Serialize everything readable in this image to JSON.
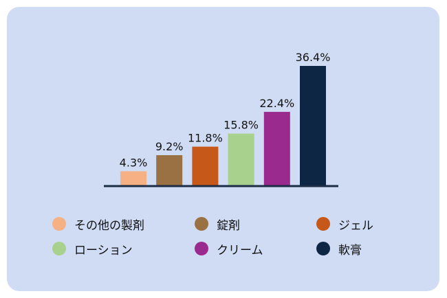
{
  "chart_data": {
    "type": "bar",
    "categories": [
      "その他の製剤",
      "錠剤",
      "ジェル",
      "ローション",
      "クリーム",
      "軟膏"
    ],
    "values": [
      4.3,
      9.2,
      11.8,
      15.8,
      22.4,
      36.4
    ],
    "data_labels": [
      "4.3%",
      "9.2%",
      "11.8%",
      "15.8%",
      "22.4%",
      "36.4%"
    ],
    "colors": [
      "#f5b184",
      "#9a7142",
      "#c6591a",
      "#a9d18e",
      "#9b2a8f",
      "#0d2644"
    ],
    "unit": "%",
    "ylim": [
      0,
      36.4
    ],
    "grid": false,
    "legend_position": "bottom"
  }
}
